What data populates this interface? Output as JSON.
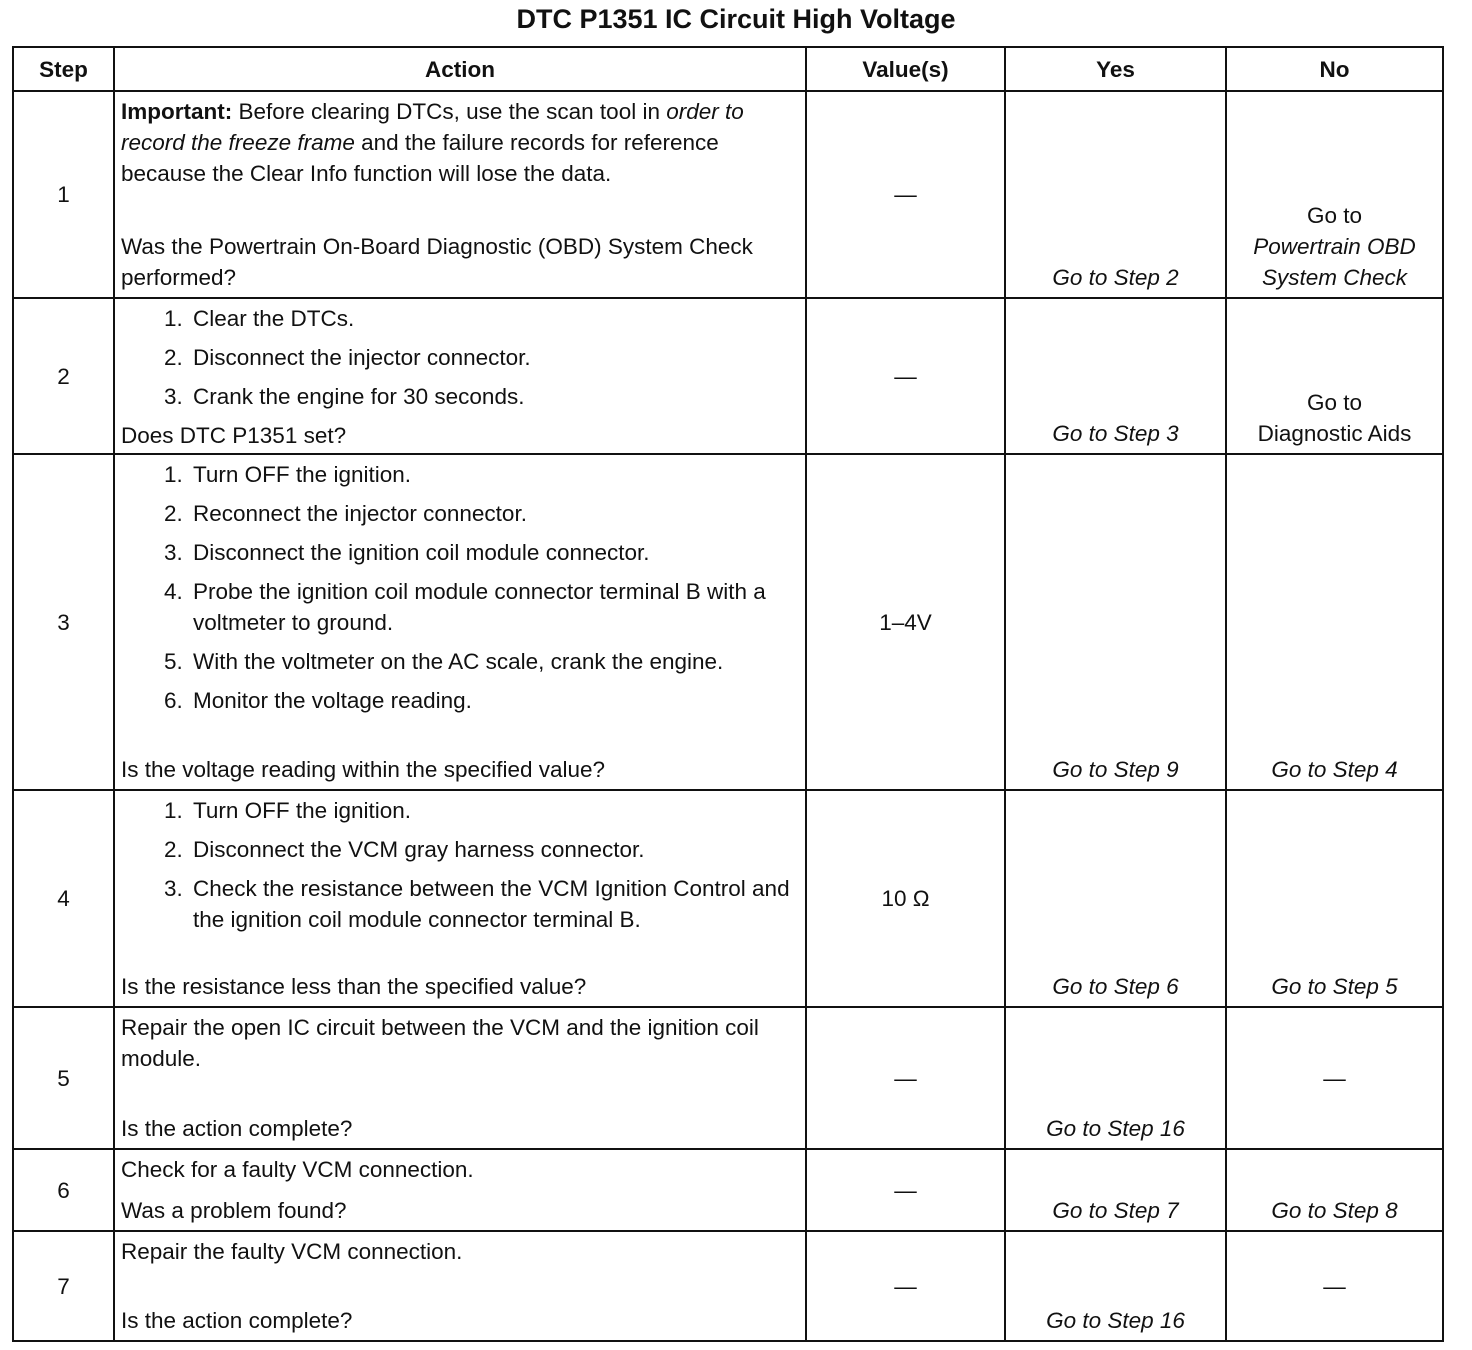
{
  "title": "DTC P1351 IC Circuit High Voltage",
  "table": {
    "headers": [
      "Step",
      "Action",
      "Value(s)",
      "Yes",
      "No"
    ],
    "rows": [
      {
        "step": "1",
        "action": {
          "note": [
            "Important:",
            "Before clearing DTCs, use the scan tool in",
            "order to record the freeze frame",
            "and the failure records for reference because the Clear Info function will lose the data."
          ],
          "question": "Was the Powertrain On-Board Diagnostic (OBD) System Check performed?"
        },
        "value": "—",
        "yes": "Go to Step 2",
        "no": [
          "Go to",
          "Powertrain OBD System Check"
        ]
      },
      {
        "step": "2",
        "action": {
          "items": [
            "Clear the DTCs.",
            "Disconnect the injector connector.",
            "Crank the engine for 30 seconds."
          ],
          "question": "Does DTC P1351 set?"
        },
        "value": "—",
        "yes": "Go to Step 3",
        "no": [
          "Go to",
          "Diagnostic Aids"
        ]
      },
      {
        "step": "3",
        "action": {
          "items": [
            "Turn OFF the ignition.",
            "Reconnect the injector connector.",
            "Disconnect the ignition coil module connector.",
            "Probe the ignition coil module connector terminal B with a voltmeter to ground.",
            "With the voltmeter on the AC scale, crank the engine.",
            "Monitor the voltage reading."
          ],
          "question": "Is the voltage reading within the specified value?"
        },
        "value": "1–4V",
        "yes": "Go to Step 9",
        "no": "Go to Step 4"
      },
      {
        "step": "4",
        "action": {
          "items": [
            "Turn OFF the ignition.",
            "Disconnect the VCM gray harness connector.",
            "Check the resistance between the VCM Ignition Control and the ignition coil module connector terminal B."
          ],
          "question": "Is the resistance less than the specified value?"
        },
        "value": "10 Ω",
        "yes": "Go to Step 6",
        "no": "Go to Step 5"
      },
      {
        "step": "5",
        "action": {
          "text": "Repair the open IC circuit between the VCM and the ignition coil module.",
          "question": "Is the action complete?"
        },
        "value": "—",
        "yes": "Go to Step 16",
        "no": "—"
      },
      {
        "step": "6",
        "action": {
          "text": "Check for a faulty VCM connection.",
          "question": "Was a problem found?"
        },
        "value": "—",
        "yes": "Go to Step 7",
        "no": "Go to Step 8"
      },
      {
        "step": "7",
        "action": {
          "text": "Repair the faulty VCM connection.",
          "question": "Is the action complete?"
        },
        "value": "—",
        "yes": "Go to Step 16",
        "no": "—"
      }
    ]
  }
}
